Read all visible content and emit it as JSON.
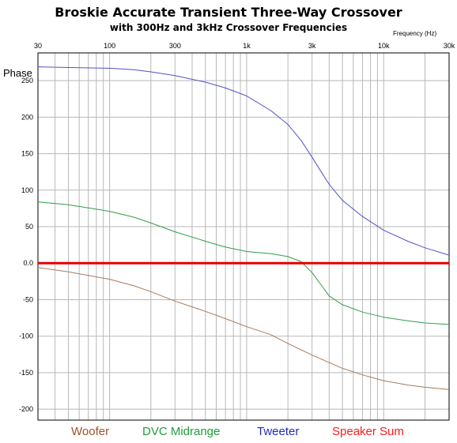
{
  "chart_data": {
    "type": "line",
    "title": "Broskie Accurate Transient Three-Way Crossover",
    "subtitle": "with 300Hz and 3kHz Crossover Frequencies",
    "xlabel": "Frequency   (Hz)",
    "ylabel": "Phase",
    "x_scale": "log",
    "xlim": [
      30,
      30000
    ],
    "ylim": [
      -215,
      288
    ],
    "grid": true,
    "x_ticks": [
      {
        "value": 30,
        "label": "30"
      },
      {
        "value": 100,
        "label": "100"
      },
      {
        "value": 300,
        "label": "300"
      },
      {
        "value": 1000,
        "label": "1k"
      },
      {
        "value": 3000,
        "label": "3k"
      },
      {
        "value": 10000,
        "label": "10k"
      },
      {
        "value": 30000,
        "label": "30k"
      }
    ],
    "y_ticks": [
      {
        "value": 250,
        "label": "250"
      },
      {
        "value": 200,
        "label": "200"
      },
      {
        "value": 150,
        "label": "150"
      },
      {
        "value": 100,
        "label": "100"
      },
      {
        "value": 50,
        "label": "50"
      },
      {
        "value": 0,
        "label": "0.0"
      },
      {
        "value": -50,
        "label": "-50"
      },
      {
        "value": -100,
        "label": "-100"
      },
      {
        "value": -150,
        "label": "-150"
      },
      {
        "value": -200,
        "label": "-200"
      }
    ],
    "legend_position": "bottom",
    "series": [
      {
        "name": "Woofer",
        "color": "#a0522d",
        "line_color": "#a87a5e",
        "points": [
          [
            30,
            -6
          ],
          [
            50,
            -12
          ],
          [
            100,
            -22
          ],
          [
            150,
            -31
          ],
          [
            200,
            -39
          ],
          [
            300,
            -52
          ],
          [
            500,
            -66
          ],
          [
            700,
            -76
          ],
          [
            1000,
            -87
          ],
          [
            1500,
            -98
          ],
          [
            2000,
            -110
          ],
          [
            3000,
            -126
          ],
          [
            5000,
            -144
          ],
          [
            7000,
            -153
          ],
          [
            10000,
            -161
          ],
          [
            15000,
            -167
          ],
          [
            20000,
            -170
          ],
          [
            30000,
            -173
          ]
        ]
      },
      {
        "name": "DVC Midrange",
        "color": "#1f9e3a",
        "line_color": "#2f9e4a",
        "points": [
          [
            30,
            84
          ],
          [
            50,
            80
          ],
          [
            100,
            71
          ],
          [
            150,
            63
          ],
          [
            200,
            55
          ],
          [
            300,
            43
          ],
          [
            500,
            30
          ],
          [
            700,
            22
          ],
          [
            1000,
            16
          ],
          [
            1500,
            13
          ],
          [
            2000,
            9
          ],
          [
            2500,
            2
          ],
          [
            3000,
            -13
          ],
          [
            3500,
            -30
          ],
          [
            4000,
            -45
          ],
          [
            5000,
            -57
          ],
          [
            7000,
            -67
          ],
          [
            10000,
            -74
          ],
          [
            15000,
            -79
          ],
          [
            20000,
            -82
          ],
          [
            30000,
            -84
          ]
        ]
      },
      {
        "name": "Tweeter",
        "color": "#1f2bc0",
        "line_color": "#5252c6",
        "points": [
          [
            30,
            269
          ],
          [
            50,
            268
          ],
          [
            100,
            267
          ],
          [
            150,
            265
          ],
          [
            200,
            262
          ],
          [
            300,
            257
          ],
          [
            500,
            248
          ],
          [
            700,
            240
          ],
          [
            1000,
            229
          ],
          [
            1500,
            209
          ],
          [
            2000,
            190
          ],
          [
            2500,
            168
          ],
          [
            3000,
            145
          ],
          [
            3500,
            125
          ],
          [
            4000,
            108
          ],
          [
            5000,
            86
          ],
          [
            7000,
            64
          ],
          [
            10000,
            45
          ],
          [
            15000,
            30
          ],
          [
            20000,
            21
          ],
          [
            30000,
            11
          ]
        ]
      },
      {
        "name": "Speaker Sum",
        "color": "#ff1a1a",
        "line_color": "#e60000",
        "points": [
          [
            30,
            0
          ],
          [
            30000,
            0
          ]
        ]
      }
    ]
  }
}
